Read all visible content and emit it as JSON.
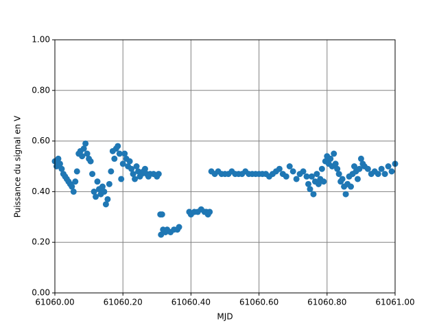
{
  "chart_data": {
    "type": "scatter",
    "x_label": "MJD",
    "y_label": "Puissance du signal en V",
    "color": "#1f77b4",
    "grid": true,
    "xlim": [
      61060,
      61061
    ],
    "xticks": [
      {
        "value": 61060,
        "label": "61060.00"
      },
      {
        "value": 61060.2,
        "label": "61060.20"
      },
      {
        "value": 61060.4,
        "label": "61060.40"
      },
      {
        "value": 61060.6,
        "label": "61060.60"
      },
      {
        "value": 61060.8,
        "label": "61060.80"
      },
      {
        "value": 61061,
        "label": "61061.00"
      }
    ],
    "ylim": [
      0,
      1
    ],
    "yticks": [
      {
        "value": 0,
        "label": "0.00"
      },
      {
        "value": 0.2,
        "label": "0.20"
      },
      {
        "value": 0.4,
        "label": "0.40"
      },
      {
        "value": 0.6,
        "label": "0.60"
      },
      {
        "value": 0.8,
        "label": "0.80"
      },
      {
        "value": 1,
        "label": "1.00"
      }
    ],
    "x": [
      61060.0,
      61060.005,
      61060.01,
      61060.015,
      61060.02,
      61060.025,
      61060.03,
      61060.035,
      61060.04,
      61060.045,
      61060.05,
      61060.055,
      61060.06,
      61060.065,
      61060.07,
      61060.075,
      61060.08,
      61060.085,
      61060.09,
      61060.095,
      61060.1,
      61060.105,
      61060.11,
      61060.115,
      61060.12,
      61060.125,
      61060.13,
      61060.135,
      61060.14,
      61060.145,
      61060.15,
      61060.155,
      61060.16,
      61060.165,
      61060.17,
      61060.175,
      61060.18,
      61060.185,
      61060.19,
      61060.195,
      61060.2,
      61060.205,
      61060.21,
      61060.215,
      61060.22,
      61060.225,
      61060.23,
      61060.235,
      61060.24,
      61060.245,
      61060.25,
      61060.255,
      61060.26,
      61060.265,
      61060.27,
      61060.275,
      61060.28,
      61060.29,
      61060.3,
      61060.305,
      61060.31,
      61060.312,
      61060.315,
      61060.318,
      61060.325,
      61060.33,
      61060.34,
      61060.35,
      61060.36,
      61060.365,
      61060.395,
      61060.4,
      61060.41,
      61060.42,
      61060.43,
      61060.44,
      61060.445,
      61060.45,
      61060.455,
      61060.46,
      61060.47,
      61060.48,
      61060.49,
      61060.5,
      61060.51,
      61060.52,
      61060.53,
      61060.54,
      61060.55,
      61060.56,
      61060.57,
      61060.58,
      61060.59,
      61060.6,
      61060.61,
      61060.62,
      61060.63,
      61060.64,
      61060.65,
      61060.66,
      61060.67,
      61060.68,
      61060.69,
      61060.7,
      61060.71,
      61060.72,
      61060.73,
      61060.74,
      61060.745,
      61060.75,
      61060.755,
      61060.76,
      61060.765,
      61060.77,
      61060.775,
      61060.78,
      61060.785,
      61060.79,
      61060.795,
      61060.8,
      61060.805,
      61060.81,
      61060.815,
      61060.82,
      61060.825,
      61060.83,
      61060.835,
      61060.84,
      61060.845,
      61060.85,
      61060.855,
      61060.86,
      61060.865,
      61060.87,
      61060.875,
      61060.88,
      61060.885,
      61060.89,
      61060.895,
      61060.9,
      61060.905,
      61060.91,
      61060.92,
      61060.93,
      61060.94,
      61060.95,
      61060.96,
      61060.97,
      61060.98,
      61060.99,
      61061.0
    ],
    "values": [
      0.52,
      0.5,
      0.53,
      0.51,
      0.49,
      0.47,
      0.46,
      0.45,
      0.44,
      0.43,
      0.42,
      0.4,
      0.44,
      0.48,
      0.55,
      0.56,
      0.54,
      0.57,
      0.59,
      0.55,
      0.53,
      0.52,
      0.47,
      0.4,
      0.38,
      0.44,
      0.41,
      0.39,
      0.42,
      0.4,
      0.35,
      0.37,
      0.43,
      0.48,
      0.56,
      0.53,
      0.57,
      0.58,
      0.55,
      0.45,
      0.51,
      0.55,
      0.53,
      0.5,
      0.52,
      0.49,
      0.47,
      0.45,
      0.5,
      0.48,
      0.46,
      0.47,
      0.48,
      0.49,
      0.47,
      0.46,
      0.47,
      0.47,
      0.46,
      0.47,
      0.31,
      0.23,
      0.31,
      0.25,
      0.24,
      0.25,
      0.24,
      0.25,
      0.25,
      0.26,
      0.32,
      0.31,
      0.32,
      0.32,
      0.33,
      0.32,
      0.32,
      0.31,
      0.32,
      0.48,
      0.47,
      0.48,
      0.47,
      0.47,
      0.47,
      0.48,
      0.47,
      0.47,
      0.47,
      0.48,
      0.47,
      0.47,
      0.47,
      0.47,
      0.47,
      0.47,
      0.46,
      0.47,
      0.48,
      0.49,
      0.47,
      0.46,
      0.5,
      0.48,
      0.45,
      0.47,
      0.48,
      0.46,
      0.43,
      0.41,
      0.46,
      0.39,
      0.44,
      0.47,
      0.43,
      0.45,
      0.49,
      0.44,
      0.52,
      0.54,
      0.51,
      0.53,
      0.5,
      0.55,
      0.51,
      0.49,
      0.47,
      0.44,
      0.45,
      0.42,
      0.39,
      0.43,
      0.46,
      0.42,
      0.47,
      0.5,
      0.48,
      0.45,
      0.49,
      0.53,
      0.51,
      0.5,
      0.49,
      0.47,
      0.48,
      0.47,
      0.49,
      0.47,
      0.5,
      0.48,
      0.51
    ]
  }
}
